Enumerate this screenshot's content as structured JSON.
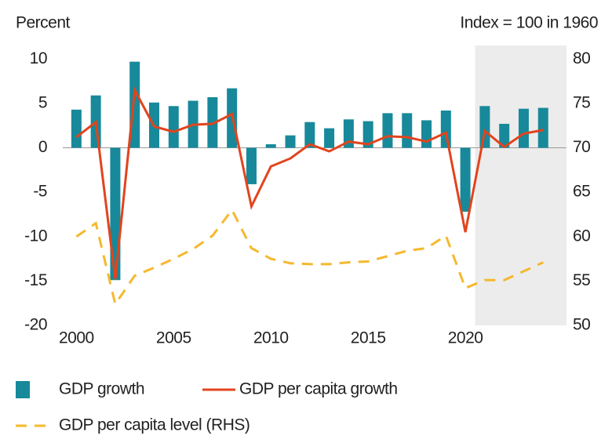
{
  "chart_data": {
    "type": "bar-line",
    "y_label": "Percent",
    "y2_label": "Index = 100 in 1960",
    "x": [
      2000,
      2001,
      2002,
      2003,
      2004,
      2005,
      2006,
      2007,
      2008,
      2009,
      2010,
      2011,
      2012,
      2013,
      2014,
      2015,
      2016,
      2017,
      2018,
      2019,
      2020,
      2021,
      2022,
      2023,
      2024
    ],
    "xlim": [
      1999.3,
      2025.2
    ],
    "xticks": [
      2000,
      2005,
      2010,
      2015,
      2020
    ],
    "ylim": [
      -20,
      10.2
    ],
    "yticks": [
      -20,
      -15,
      -10,
      -5,
      0,
      5,
      10
    ],
    "y2lim": [
      50,
      80.2
    ],
    "y2ticks": [
      50,
      55,
      60,
      65,
      70,
      75,
      80
    ],
    "shade_from": 2020.5,
    "series": [
      {
        "name": "GDP growth",
        "kind": "bar",
        "color": "#17899a",
        "values": [
          4.3,
          5.9,
          -14.9,
          9.7,
          5.1,
          4.7,
          5.3,
          5.7,
          6.7,
          -4.1,
          0.4,
          1.4,
          2.9,
          2.2,
          3.2,
          3.0,
          3.9,
          3.9,
          3.1,
          4.2,
          -7.2,
          4.7,
          2.7,
          4.4,
          4.5
        ]
      },
      {
        "name": "GDP per capita growth",
        "kind": "line",
        "color": "#e2441d",
        "values": [
          1.2,
          2.9,
          -14.8,
          6.5,
          2.4,
          1.8,
          2.6,
          2.7,
          3.8,
          -6.6,
          -2.1,
          -1.2,
          0.4,
          -0.4,
          0.7,
          0.4,
          1.3,
          1.2,
          0.7,
          1.7,
          -9.5,
          1.9,
          0.1,
          1.6,
          2.0
        ]
      },
      {
        "name": "GDP per capita level (RHS)",
        "kind": "dashed",
        "axis": "y2",
        "color": "#f5b82e",
        "values": [
          60,
          61.5,
          52.4,
          55.6,
          56.5,
          57.5,
          58.6,
          60.1,
          63,
          58.7,
          57.5,
          57,
          56.9,
          56.9,
          57.1,
          57.2,
          57.8,
          58.4,
          58.7,
          60.1,
          54.2,
          55.1,
          55.1,
          56.1,
          57.1
        ]
      }
    ]
  }
}
